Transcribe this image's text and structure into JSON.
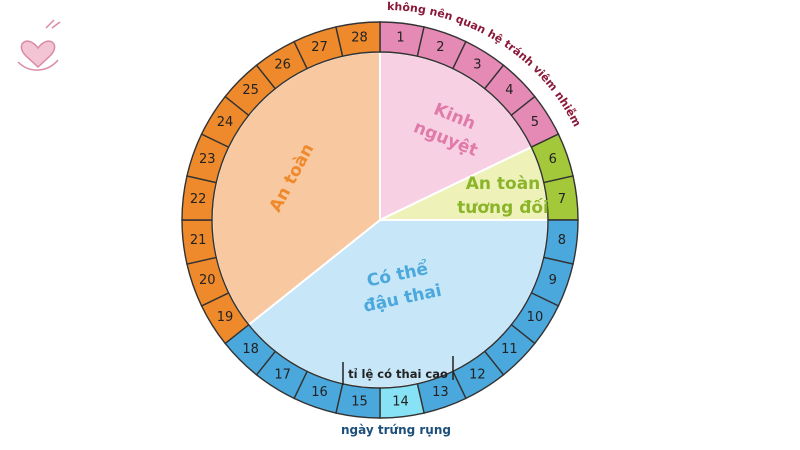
{
  "wheel": {
    "days": [
      "1",
      "2",
      "3",
      "4",
      "5",
      "6",
      "7",
      "8",
      "9",
      "10",
      "11",
      "12",
      "13",
      "14",
      "15",
      "16",
      "17",
      "18",
      "19",
      "20",
      "21",
      "22",
      "23",
      "24",
      "25",
      "26",
      "27",
      "28"
    ],
    "phases": [
      {
        "lines": [
          "Kinh",
          "nguyệt"
        ]
      },
      {
        "lines": [
          "An toàn",
          "tương đối"
        ]
      },
      {
        "lines": [
          "Có thể",
          "đậu thai"
        ]
      },
      {
        "lines": [
          "An toàn"
        ]
      }
    ]
  },
  "annotations": {
    "avoid": "không nên quan hệ tránh viêm nhiễm",
    "high_chance": "tỉ lệ có thai cao",
    "ovulation": "ngày trứng rụng"
  }
}
